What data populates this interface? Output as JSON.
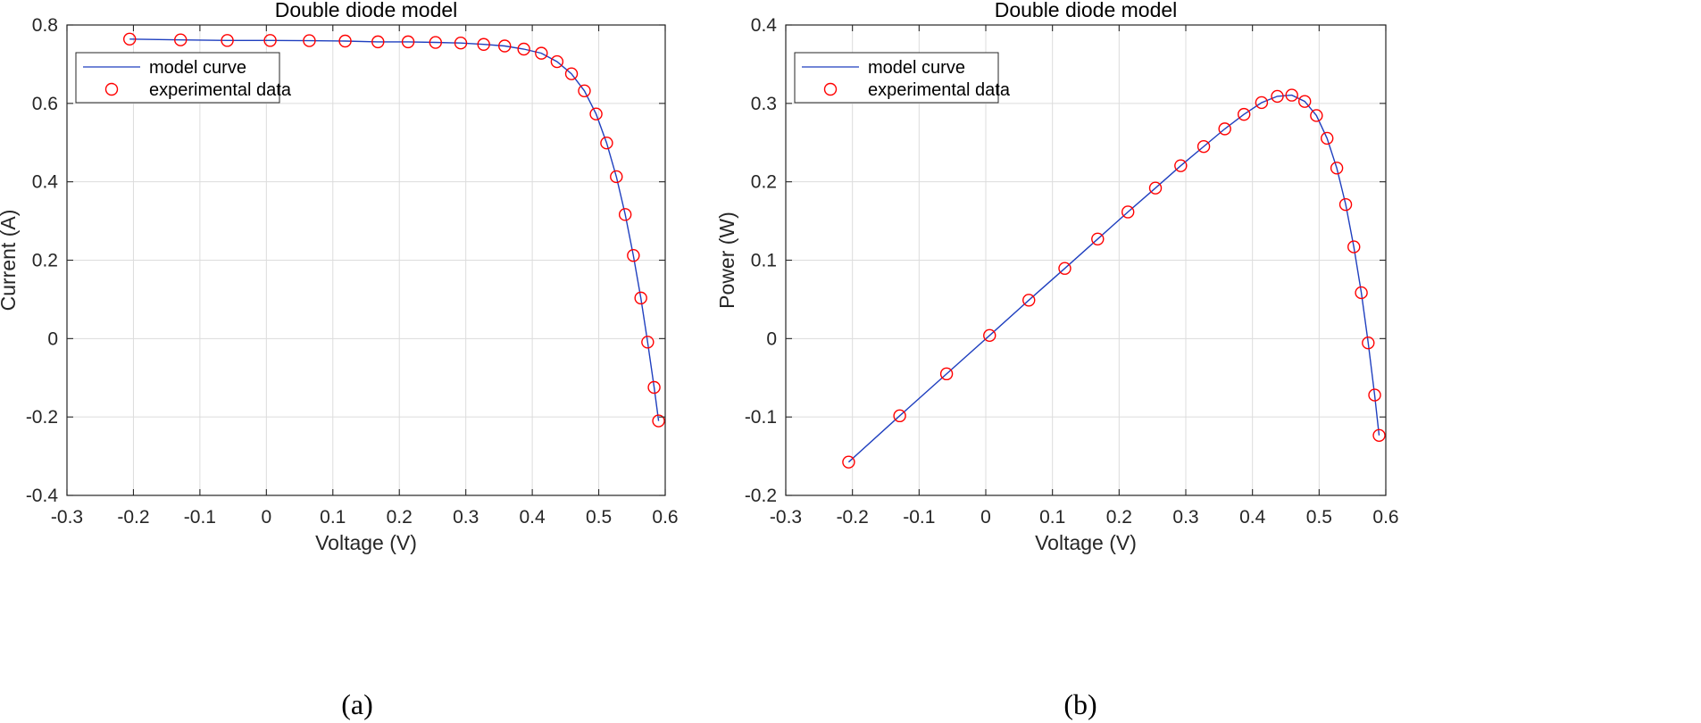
{
  "colors": {
    "model_line": "#1f3fbf",
    "marker": "#ff0000",
    "grid": "#dcdcdc",
    "axis": "#262626"
  },
  "chart_data": [
    {
      "id": "a",
      "type": "line+scatter",
      "title": "Double diode model",
      "xlabel": "Voltage (V)",
      "ylabel": "Current (A)",
      "caption": "(a)",
      "xlim": [
        -0.3,
        0.6
      ],
      "ylim": [
        -0.4,
        0.8
      ],
      "xticks": [
        -0.3,
        -0.2,
        -0.1,
        0,
        0.1,
        0.2,
        0.3,
        0.4,
        0.5,
        0.6
      ],
      "xtick_labels": [
        "-0.3",
        "-0.2",
        "-0.1",
        "0",
        "0.1",
        "0.2",
        "0.3",
        "0.4",
        "0.5",
        "0.6"
      ],
      "yticks": [
        -0.4,
        -0.2,
        0,
        0.2,
        0.4,
        0.6,
        0.8
      ],
      "ytick_labels": [
        "-0.4",
        "-0.2",
        "0",
        "0.2",
        "0.4",
        "0.6",
        "0.8"
      ],
      "grid": true,
      "legend": {
        "position": "top-left",
        "entries": [
          "model curve",
          "experimental data"
        ]
      },
      "series": [
        {
          "name": "experimental data",
          "style": "markers",
          "x": [
            -0.2057,
            -0.1291,
            -0.0588,
            0.0057,
            0.0646,
            0.1185,
            0.1678,
            0.2132,
            0.2545,
            0.2924,
            0.3269,
            0.3585,
            0.3873,
            0.4137,
            0.4373,
            0.459,
            0.4784,
            0.496,
            0.5119,
            0.5265,
            0.5398,
            0.5521,
            0.5633,
            0.5736,
            0.5833,
            0.59
          ],
          "y": [
            0.764,
            0.762,
            0.7605,
            0.7605,
            0.76,
            0.759,
            0.757,
            0.757,
            0.7555,
            0.754,
            0.7505,
            0.7465,
            0.7385,
            0.728,
            0.7065,
            0.6755,
            0.632,
            0.573,
            0.499,
            0.413,
            0.3165,
            0.212,
            0.1035,
            -0.009,
            -0.1245,
            -0.21
          ]
        },
        {
          "name": "model curve",
          "style": "line",
          "x": [
            -0.2057,
            -0.1291,
            -0.0588,
            0.0057,
            0.0646,
            0.1185,
            0.1678,
            0.2132,
            0.2545,
            0.2924,
            0.3269,
            0.3585,
            0.3873,
            0.4137,
            0.4373,
            0.459,
            0.4784,
            0.496,
            0.5119,
            0.5265,
            0.5398,
            0.5521,
            0.5633,
            0.5736,
            0.5833,
            0.59
          ],
          "y": [
            0.764,
            0.762,
            0.7605,
            0.7605,
            0.76,
            0.759,
            0.757,
            0.757,
            0.7555,
            0.754,
            0.7505,
            0.7465,
            0.7385,
            0.728,
            0.7065,
            0.6755,
            0.632,
            0.573,
            0.499,
            0.413,
            0.3165,
            0.212,
            0.1035,
            -0.009,
            -0.1245,
            -0.21
          ]
        }
      ]
    },
    {
      "id": "b",
      "type": "line+scatter",
      "title": "Double diode model",
      "xlabel": "Voltage (V)",
      "ylabel": "Power (W)",
      "caption": "(b)",
      "xlim": [
        -0.3,
        0.6
      ],
      "ylim": [
        -0.2,
        0.4
      ],
      "xticks": [
        -0.3,
        -0.2,
        -0.1,
        0,
        0.1,
        0.2,
        0.3,
        0.4,
        0.5,
        0.6
      ],
      "xtick_labels": [
        "-0.3",
        "-0.2",
        "-0.1",
        "0",
        "0.1",
        "0.2",
        "0.3",
        "0.4",
        "0.5",
        "0.6"
      ],
      "yticks": [
        -0.2,
        -0.1,
        0,
        0.1,
        0.2,
        0.3,
        0.4
      ],
      "ytick_labels": [
        "-0.2",
        "-0.1",
        "0",
        "0.1",
        "0.2",
        "0.3",
        "0.4"
      ],
      "grid": true,
      "legend": {
        "position": "top-left",
        "entries": [
          "model curve",
          "experimental data"
        ]
      },
      "series": [
        {
          "name": "experimental data",
          "style": "markers",
          "x": [
            -0.2057,
            -0.1291,
            -0.0588,
            0.0057,
            0.0646,
            0.1185,
            0.1678,
            0.2132,
            0.2545,
            0.2924,
            0.3269,
            0.3585,
            0.3873,
            0.4137,
            0.4373,
            0.459,
            0.4784,
            0.496,
            0.5119,
            0.5265,
            0.5398,
            0.5521,
            0.5633,
            0.5736,
            0.5833,
            0.59
          ],
          "y": [
            -0.1575,
            -0.0985,
            -0.045,
            0.004,
            0.049,
            0.0895,
            0.127,
            0.1615,
            0.192,
            0.2205,
            0.245,
            0.2675,
            0.286,
            0.301,
            0.309,
            0.3105,
            0.3025,
            0.2845,
            0.2555,
            0.2175,
            0.171,
            0.117,
            0.0585,
            -0.0055,
            -0.072,
            -0.1235
          ]
        },
        {
          "name": "model curve",
          "style": "line",
          "x": [
            -0.2057,
            -0.1291,
            -0.0588,
            0.0057,
            0.0646,
            0.1185,
            0.1678,
            0.2132,
            0.2545,
            0.2924,
            0.3269,
            0.3585,
            0.3873,
            0.4137,
            0.4373,
            0.459,
            0.4784,
            0.496,
            0.5119,
            0.5265,
            0.5398,
            0.5521,
            0.5633,
            0.5736,
            0.5833,
            0.59
          ],
          "y": [
            -0.1575,
            -0.0985,
            -0.045,
            0.004,
            0.049,
            0.0895,
            0.127,
            0.1615,
            0.192,
            0.2205,
            0.245,
            0.2675,
            0.286,
            0.301,
            0.309,
            0.3105,
            0.3025,
            0.2845,
            0.2555,
            0.2175,
            0.171,
            0.117,
            0.0585,
            -0.0055,
            -0.072,
            -0.1235
          ]
        }
      ]
    }
  ]
}
